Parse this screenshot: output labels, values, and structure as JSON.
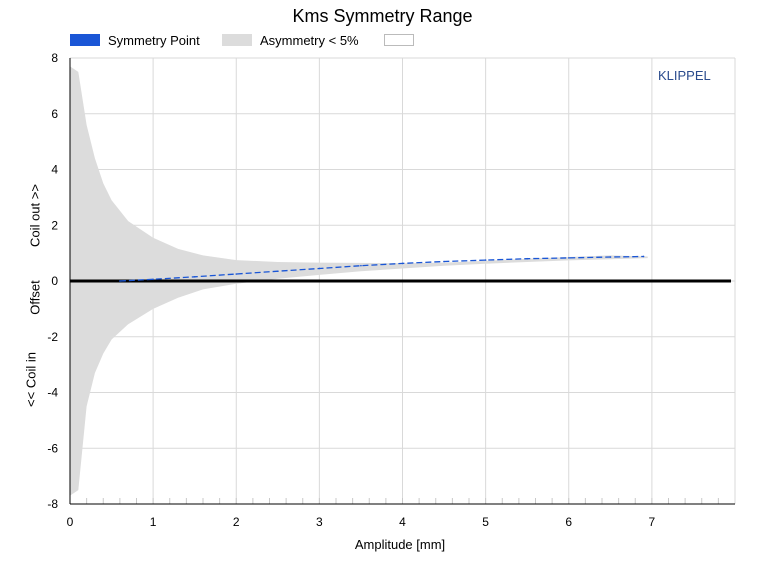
{
  "chart_data": {
    "type": "area",
    "title": "Kms Symmetry Range",
    "xlabel": "Amplitude [mm]",
    "ylabel_parts": [
      "<< Coil in",
      "Offset",
      "Coil out >>"
    ],
    "xlim": [
      0,
      8
    ],
    "ylim": [
      -8,
      8
    ],
    "x_ticks": [
      0,
      1,
      2,
      3,
      4,
      5,
      6,
      7
    ],
    "y_ticks": [
      8,
      6,
      4,
      2,
      0,
      -2,
      -4,
      -6,
      -8
    ],
    "grid": true,
    "legend_position": "top-left",
    "legend": [
      {
        "name": "Symmetry Point",
        "color": "#1a56d6"
      },
      {
        "name": "Asymmetry < 5%",
        "color": "#dcdcdc"
      },
      {
        "name": "",
        "color": "#ffffff"
      }
    ],
    "brand": "KLIPPEL",
    "series": [
      {
        "name": "Asymmetry < 5%",
        "kind": "band",
        "x": [
          0.0,
          0.1,
          0.2,
          0.3,
          0.4,
          0.5,
          0.7,
          1.0,
          1.3,
          1.6,
          2.0,
          2.5,
          3.0,
          3.5,
          4.0,
          4.5,
          5.0,
          5.5,
          6.0,
          6.5,
          6.95
        ],
        "upper": [
          7.7,
          7.5,
          5.6,
          4.4,
          3.5,
          2.9,
          2.15,
          1.55,
          1.15,
          0.92,
          0.75,
          0.68,
          0.66,
          0.65,
          0.64,
          0.66,
          0.72,
          0.8,
          0.86,
          0.92,
          0.88
        ],
        "lower": [
          -7.7,
          -7.5,
          -4.5,
          -3.3,
          -2.6,
          -2.1,
          -1.55,
          -1.0,
          -0.6,
          -0.3,
          -0.1,
          0.08,
          0.22,
          0.35,
          0.45,
          0.55,
          0.62,
          0.68,
          0.74,
          0.78,
          0.82
        ]
      },
      {
        "name": "Symmetry Point",
        "kind": "line",
        "color": "#1a56d6",
        "x": [
          0.6,
          1.0,
          1.5,
          2.0,
          2.5,
          3.0,
          3.5,
          4.0,
          4.5,
          5.0,
          5.5,
          6.0,
          6.5,
          6.9
        ],
        "y": [
          0.0,
          0.06,
          0.15,
          0.25,
          0.35,
          0.45,
          0.55,
          0.63,
          0.7,
          0.75,
          0.8,
          0.83,
          0.86,
          0.88
        ]
      },
      {
        "name": "",
        "kind": "line",
        "color": "#000000",
        "x": [
          0,
          8
        ],
        "y": [
          0,
          0
        ]
      }
    ]
  }
}
